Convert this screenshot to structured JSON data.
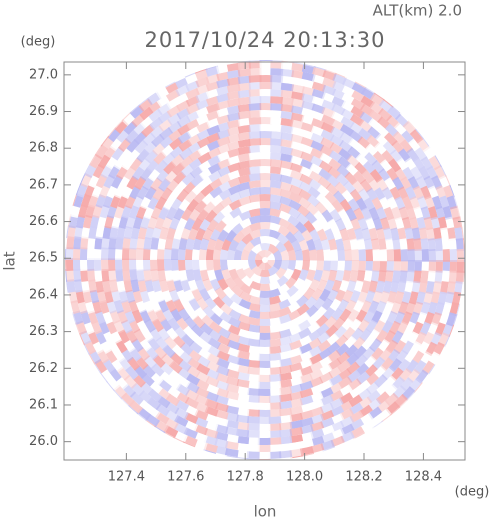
{
  "chart_data": {
    "type": "radar-ppi",
    "altitude_label": "ALT(km) 2.0",
    "title": "2017/10/24 20:13:30",
    "x_label": "lon",
    "y_label": "lat",
    "x_unit": "(deg)",
    "y_unit": "(deg)",
    "xlim": [
      127.19,
      128.54
    ],
    "ylim": [
      25.95,
      27.035
    ],
    "xticks": [
      127.4,
      127.6,
      127.8,
      {
        "value": 128,
        "label": "128.0"
      },
      128.2,
      128.4
    ],
    "yticks": [
      {
        "value": 26,
        "label": "26.0"
      },
      26.1,
      26.2,
      26.3,
      26.4,
      26.5,
      26.6,
      26.7,
      26.8,
      26.9,
      {
        "value": 27,
        "label": "27.0"
      }
    ]
  }
}
